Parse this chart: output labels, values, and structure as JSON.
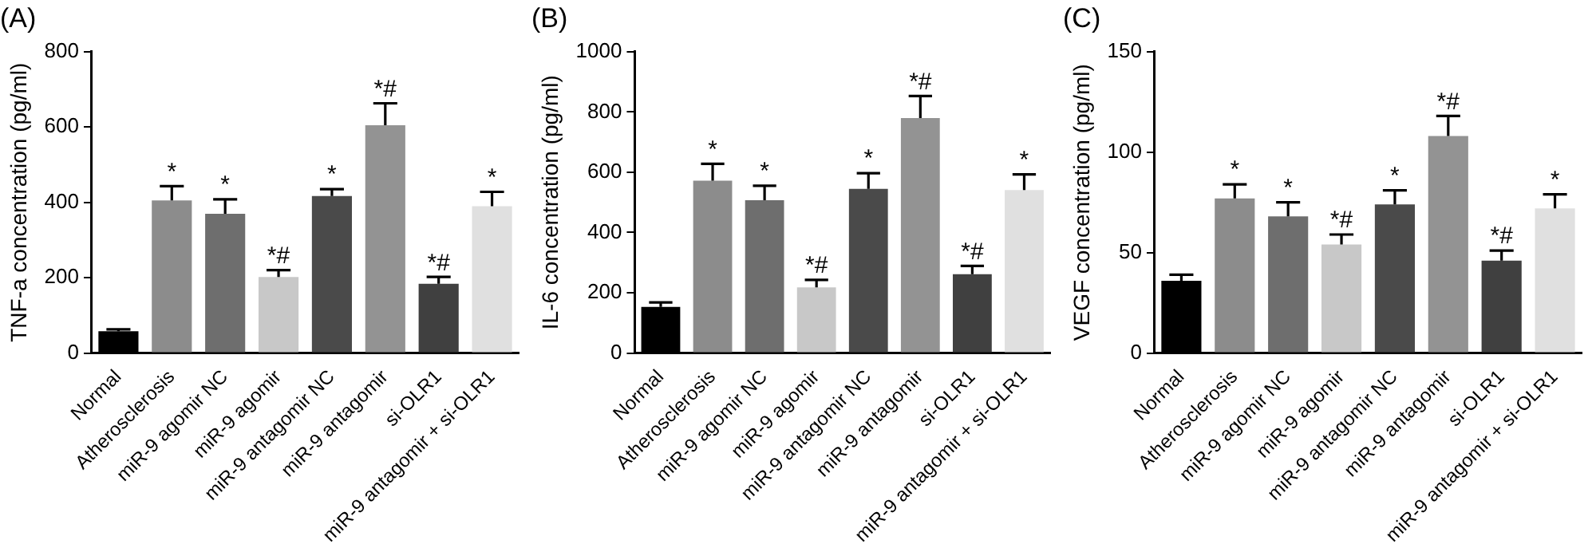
{
  "chart_data": [
    {
      "type": "bar",
      "title": "(A)",
      "ylabel": "TNF-a concentration (pg/ml)",
      "categories": [
        "Normal",
        "Atherosclerosis",
        "miR-9 agomir NC",
        "miR-9 agomir",
        "miR-9 antagomir NC",
        "miR-9 antagomir",
        "si-OLR1",
        "miR-9 antagomir + si-OLR1"
      ],
      "values": [
        58,
        405,
        370,
        202,
        417,
        605,
        184,
        390
      ],
      "errors": [
        5,
        38,
        38,
        18,
        18,
        58,
        18,
        38
      ],
      "colors": [
        "#000000",
        "#8c8c8c",
        "#6e6e6e",
        "#c8c8c8",
        "#4a4a4a",
        "#939393",
        "#404040",
        "#e0e0e0"
      ],
      "ylim": [
        0,
        800
      ],
      "yticks": [
        0,
        200,
        400,
        600,
        800
      ],
      "grid": false,
      "legend": false,
      "annotations": [
        {
          "text": "*",
          "x": "Atherosclerosis",
          "y": 443
        },
        {
          "text": "*",
          "x": "miR-9 agomir NC",
          "y": 408
        },
        {
          "text": "*#",
          "x": "miR-9 agomir",
          "y": 220
        },
        {
          "text": "*",
          "x": "miR-9 antagomir NC",
          "y": 435
        },
        {
          "text": "*#",
          "x": "miR-9 antagomir",
          "y": 663
        },
        {
          "text": "*#",
          "x": "si-OLR1",
          "y": 202
        },
        {
          "text": "*",
          "x": "miR-9 antagomir + si-OLR1",
          "y": 428
        }
      ]
    },
    {
      "type": "bar",
      "title": "(B)",
      "ylabel": "IL-6 concentration (pg/ml)",
      "categories": [
        "Normal",
        "Atherosclerosis",
        "miR-9 agomir NC",
        "miR-9 agomir",
        "miR-9 antagomir NC",
        "miR-9 antagomir",
        "si-OLR1",
        "miR-9 antagomir + si-OLR1"
      ],
      "values": [
        153,
        572,
        507,
        218,
        545,
        780,
        262,
        541
      ],
      "errors": [
        15,
        56,
        48,
        25,
        52,
        73,
        27,
        52
      ],
      "colors": [
        "#000000",
        "#8c8c8c",
        "#6e6e6e",
        "#c8c8c8",
        "#4a4a4a",
        "#939393",
        "#404040",
        "#e0e0e0"
      ],
      "ylim": [
        0,
        1000
      ],
      "yticks": [
        0,
        200,
        400,
        600,
        800,
        1000
      ],
      "grid": false,
      "legend": false,
      "annotations": [
        {
          "text": "*",
          "x": "Atherosclerosis",
          "y": 628
        },
        {
          "text": "*",
          "x": "miR-9 agomir NC",
          "y": 555
        },
        {
          "text": "*#",
          "x": "miR-9 agomir",
          "y": 243
        },
        {
          "text": "*",
          "x": "miR-9 antagomir NC",
          "y": 597
        },
        {
          "text": "*#",
          "x": "miR-9 antagomir",
          "y": 853
        },
        {
          "text": "*#",
          "x": "si-OLR1",
          "y": 289
        },
        {
          "text": "*",
          "x": "miR-9 antagomir + si-OLR1",
          "y": 593
        }
      ]
    },
    {
      "type": "bar",
      "title": "(C)",
      "ylabel": "VEGF concentration (pg/ml)",
      "categories": [
        "Normal",
        "Atherosclerosis",
        "miR-9 agomir NC",
        "miR-9 agomir",
        "miR-9 antagomir NC",
        "miR-9 antagomir",
        "si-OLR1",
        "miR-9 antagomir + si-OLR1"
      ],
      "values": [
        36,
        77,
        68,
        54,
        74,
        108,
        46,
        72
      ],
      "errors": [
        3,
        7,
        7,
        5,
        7,
        10,
        5,
        7
      ],
      "colors": [
        "#000000",
        "#8c8c8c",
        "#6e6e6e",
        "#c8c8c8",
        "#4a4a4a",
        "#939393",
        "#404040",
        "#e0e0e0"
      ],
      "ylim": [
        0,
        150
      ],
      "yticks": [
        0,
        50,
        100,
        150
      ],
      "grid": false,
      "legend": false,
      "annotations": [
        {
          "text": "*",
          "x": "Atherosclerosis",
          "y": 84
        },
        {
          "text": "*",
          "x": "miR-9 agomir NC",
          "y": 75
        },
        {
          "text": "*#",
          "x": "miR-9 agomir",
          "y": 59
        },
        {
          "text": "*",
          "x": "miR-9 antagomir NC",
          "y": 81
        },
        {
          "text": "*#",
          "x": "miR-9 antagomir",
          "y": 118
        },
        {
          "text": "*#",
          "x": "si-OLR1",
          "y": 51
        },
        {
          "text": "*",
          "x": "miR-9 antagomir + si-OLR1",
          "y": 79
        }
      ]
    }
  ]
}
